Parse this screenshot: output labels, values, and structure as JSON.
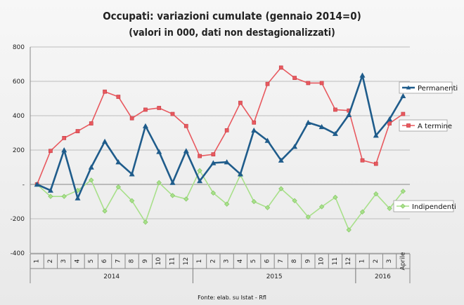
{
  "chart_data": {
    "type": "line",
    "title": "Occupati: variazioni cumulate (gennaio 2014=0)",
    "subtitle": "(valori in 000, dati non destagionalizzati)",
    "source": "Fonte: elab. su Istat - Rfl",
    "ylim": [
      -400,
      800
    ],
    "yticks": [
      -400,
      -200,
      0,
      200,
      400,
      600,
      800
    ],
    "ytick_labels": [
      "-400",
      "-200",
      "-",
      "200",
      "400",
      "600",
      "800"
    ],
    "grid": "horizontal",
    "legend_placement": "right-inline",
    "categories": [
      "1",
      "2",
      "3",
      "4",
      "5",
      "6",
      "7",
      "8",
      "9",
      "10",
      "11",
      "12",
      "1",
      "2",
      "3",
      "4",
      "5",
      "6",
      "7",
      "8",
      "9",
      "10",
      "11",
      "12",
      "1",
      "2",
      "3",
      "Aprile"
    ],
    "year_groups": [
      {
        "label": "2014",
        "start": 0,
        "end": 11
      },
      {
        "label": "2015",
        "start": 12,
        "end": 23
      },
      {
        "label": "2016",
        "start": 24,
        "end": 27
      }
    ],
    "series": [
      {
        "name": "Permanenti",
        "color": "#1f5c8b",
        "marker": "triangle",
        "values": [
          0,
          -35,
          200,
          -80,
          100,
          250,
          130,
          60,
          340,
          190,
          10,
          195,
          20,
          125,
          130,
          60,
          315,
          255,
          140,
          220,
          360,
          335,
          295,
          405,
          635,
          285,
          380,
          515
        ]
      },
      {
        "name": "A termine",
        "color": "#e8595f",
        "marker": "square",
        "values": [
          0,
          195,
          270,
          310,
          355,
          540,
          510,
          385,
          435,
          445,
          410,
          340,
          165,
          175,
          315,
          475,
          360,
          585,
          680,
          620,
          590,
          590,
          435,
          430,
          140,
          120,
          355,
          410
        ]
      },
      {
        "name": "Indipendenti",
        "color": "#a8e08a",
        "marker": "diamond",
        "values": [
          0,
          -70,
          -70,
          -35,
          25,
          -155,
          -15,
          -95,
          -220,
          10,
          -65,
          -85,
          80,
          -50,
          -115,
          55,
          -100,
          -135,
          -25,
          -95,
          -190,
          -130,
          -75,
          -265,
          -160,
          -55,
          -140,
          -40
        ]
      }
    ]
  }
}
